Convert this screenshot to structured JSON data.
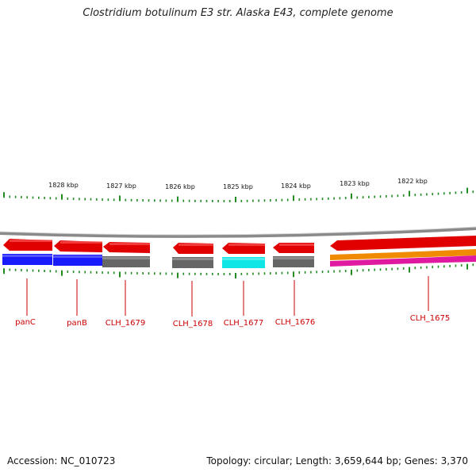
{
  "title": "Clostridium botulinum E3 str. Alaska E43, complete genome",
  "accession": "Accession: NC_010723",
  "summary": "Topology: circular; Length: 3,659,644 bp; Genes: 3,370",
  "colors": {
    "gene_arrow": "#e00000",
    "cds_blue": "#1a1aff",
    "cds_gray": "#666666",
    "cds_cyan": "#11e6e6",
    "cds_orange": "#f08a00",
    "cds_magenta": "#e01aa0",
    "backbone": "#8a8a8a",
    "tick": "#228b22",
    "label": "#cc0000"
  },
  "kbp_labels": [
    "1828 kbp",
    "1827 kbp",
    "1826 kbp",
    "1825 kbp",
    "1824 kbp",
    "1823 kbp",
    "1822 kbp"
  ],
  "genes": [
    "panC",
    "panB",
    "CLH_1679",
    "CLH_1678",
    "CLH_1677",
    "CLH_1676",
    "CLH_1675"
  ]
}
